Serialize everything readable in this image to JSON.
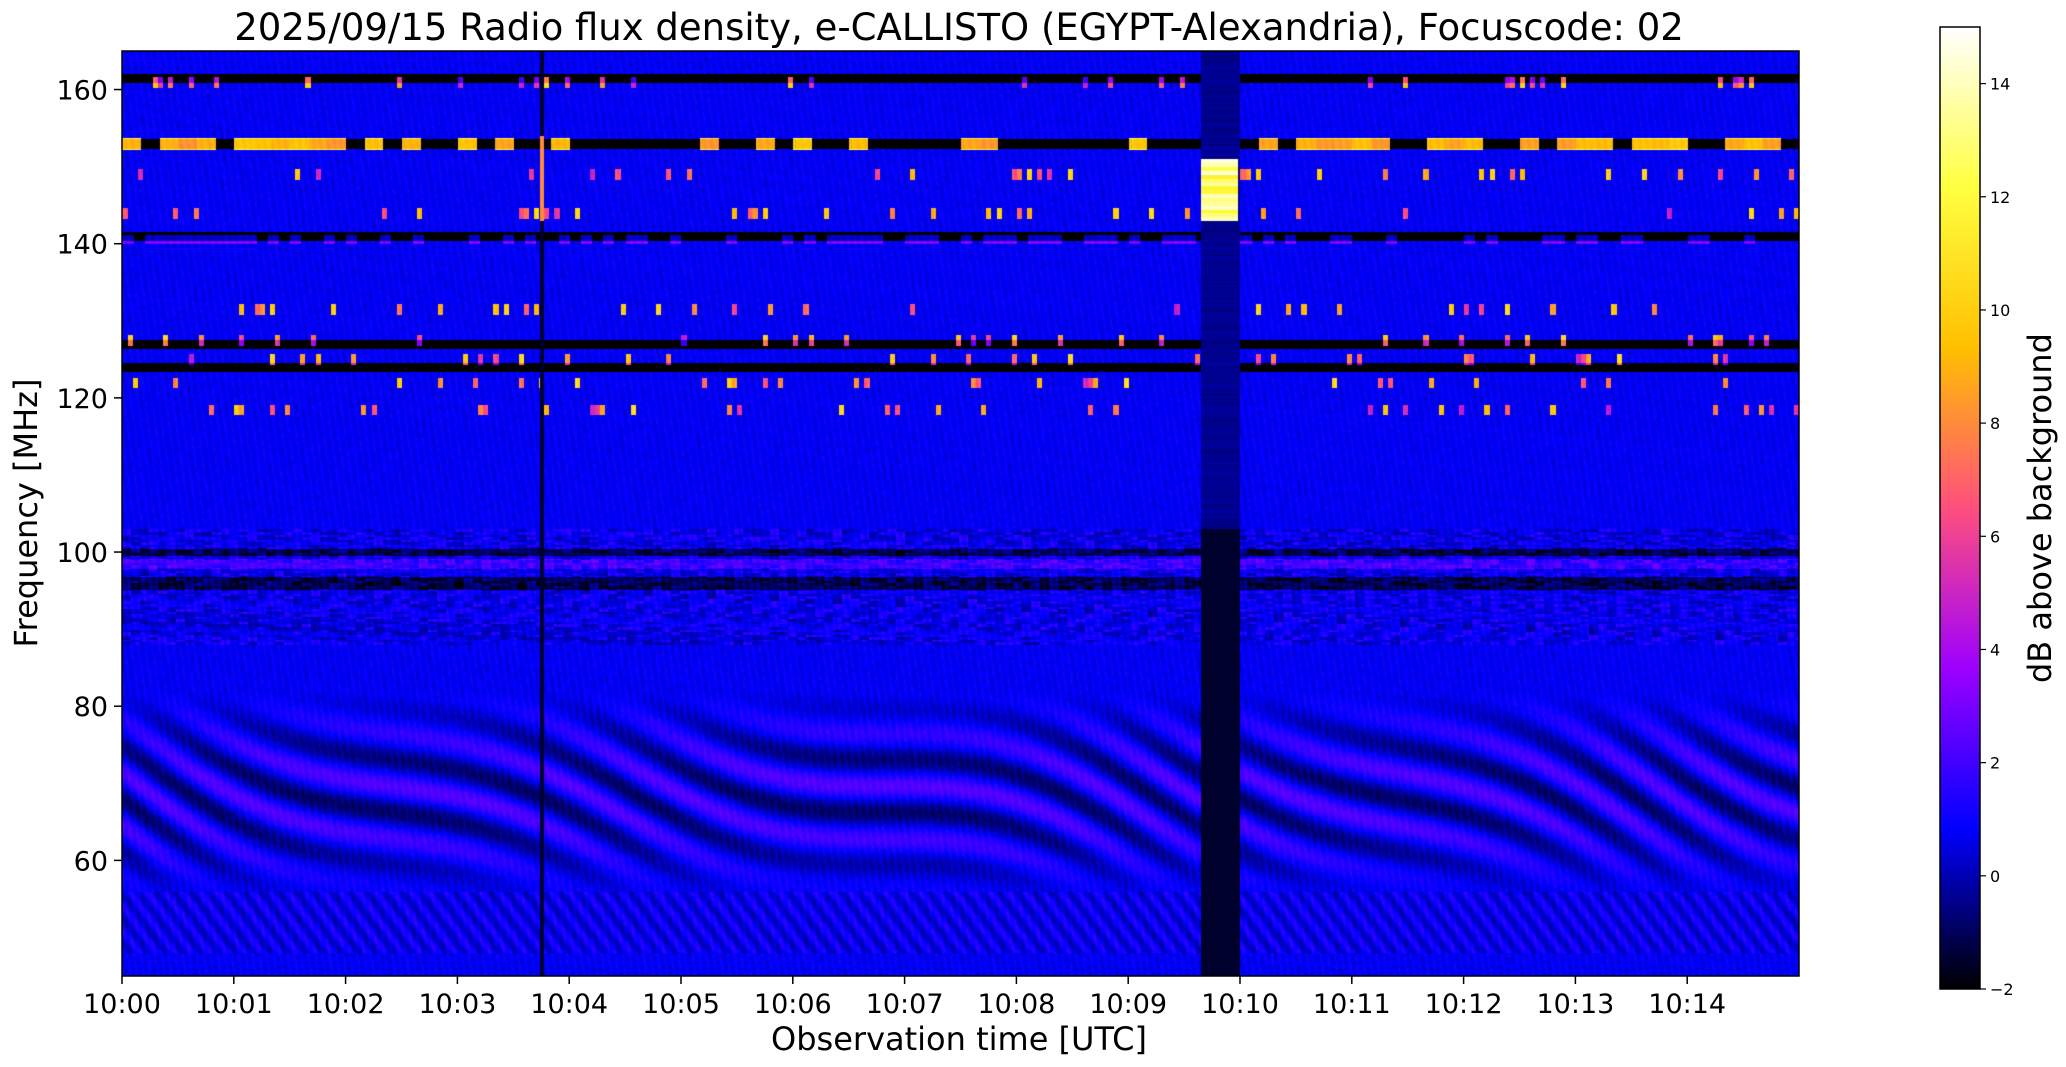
{
  "chart_data": {
    "type": "heatmap",
    "title": "2025/09/15  Radio flux density, e-CALLISTO (EGYPT-Alexandria), Focuscode: 02",
    "xlabel": "Observation time [UTC]",
    "ylabel": "Frequency [MHz]",
    "x_ticks": [
      "10:00",
      "10:01",
      "10:02",
      "10:03",
      "10:04",
      "10:05",
      "10:06",
      "10:07",
      "10:08",
      "10:09",
      "10:10",
      "10:11",
      "10:12",
      "10:13",
      "10:14"
    ],
    "x_range_minutes": [
      0,
      15
    ],
    "y_ticks": [
      60,
      80,
      100,
      120,
      140,
      160
    ],
    "ylim": [
      45,
      165
    ],
    "colorbar": {
      "label": "dB above background",
      "ticks": [
        -2,
        0,
        2,
        4,
        6,
        8,
        10,
        12,
        14
      ],
      "range": [
        -2,
        15
      ],
      "colormap": "gnuplot2",
      "stops": [
        "#000000",
        "#0000ff",
        "#9d00ff",
        "#ff4f7d",
        "#ffc000",
        "#ffff40",
        "#ffffff"
      ]
    },
    "features": {
      "dark_horizontal_bands_mhz": [
        161.5,
        153,
        141,
        127,
        124
      ],
      "bright_horizontal_bands_mhz": [
        153
      ],
      "dark_vertical_stripes_minutes": [
        3.75,
        [
          9.65,
          10.0
        ]
      ],
      "bright_burst": {
        "time_minutes": 9.8,
        "freq_mhz": [
          143,
          151
        ]
      },
      "interference_wave_band_mhz": [
        55,
        82
      ]
    }
  }
}
